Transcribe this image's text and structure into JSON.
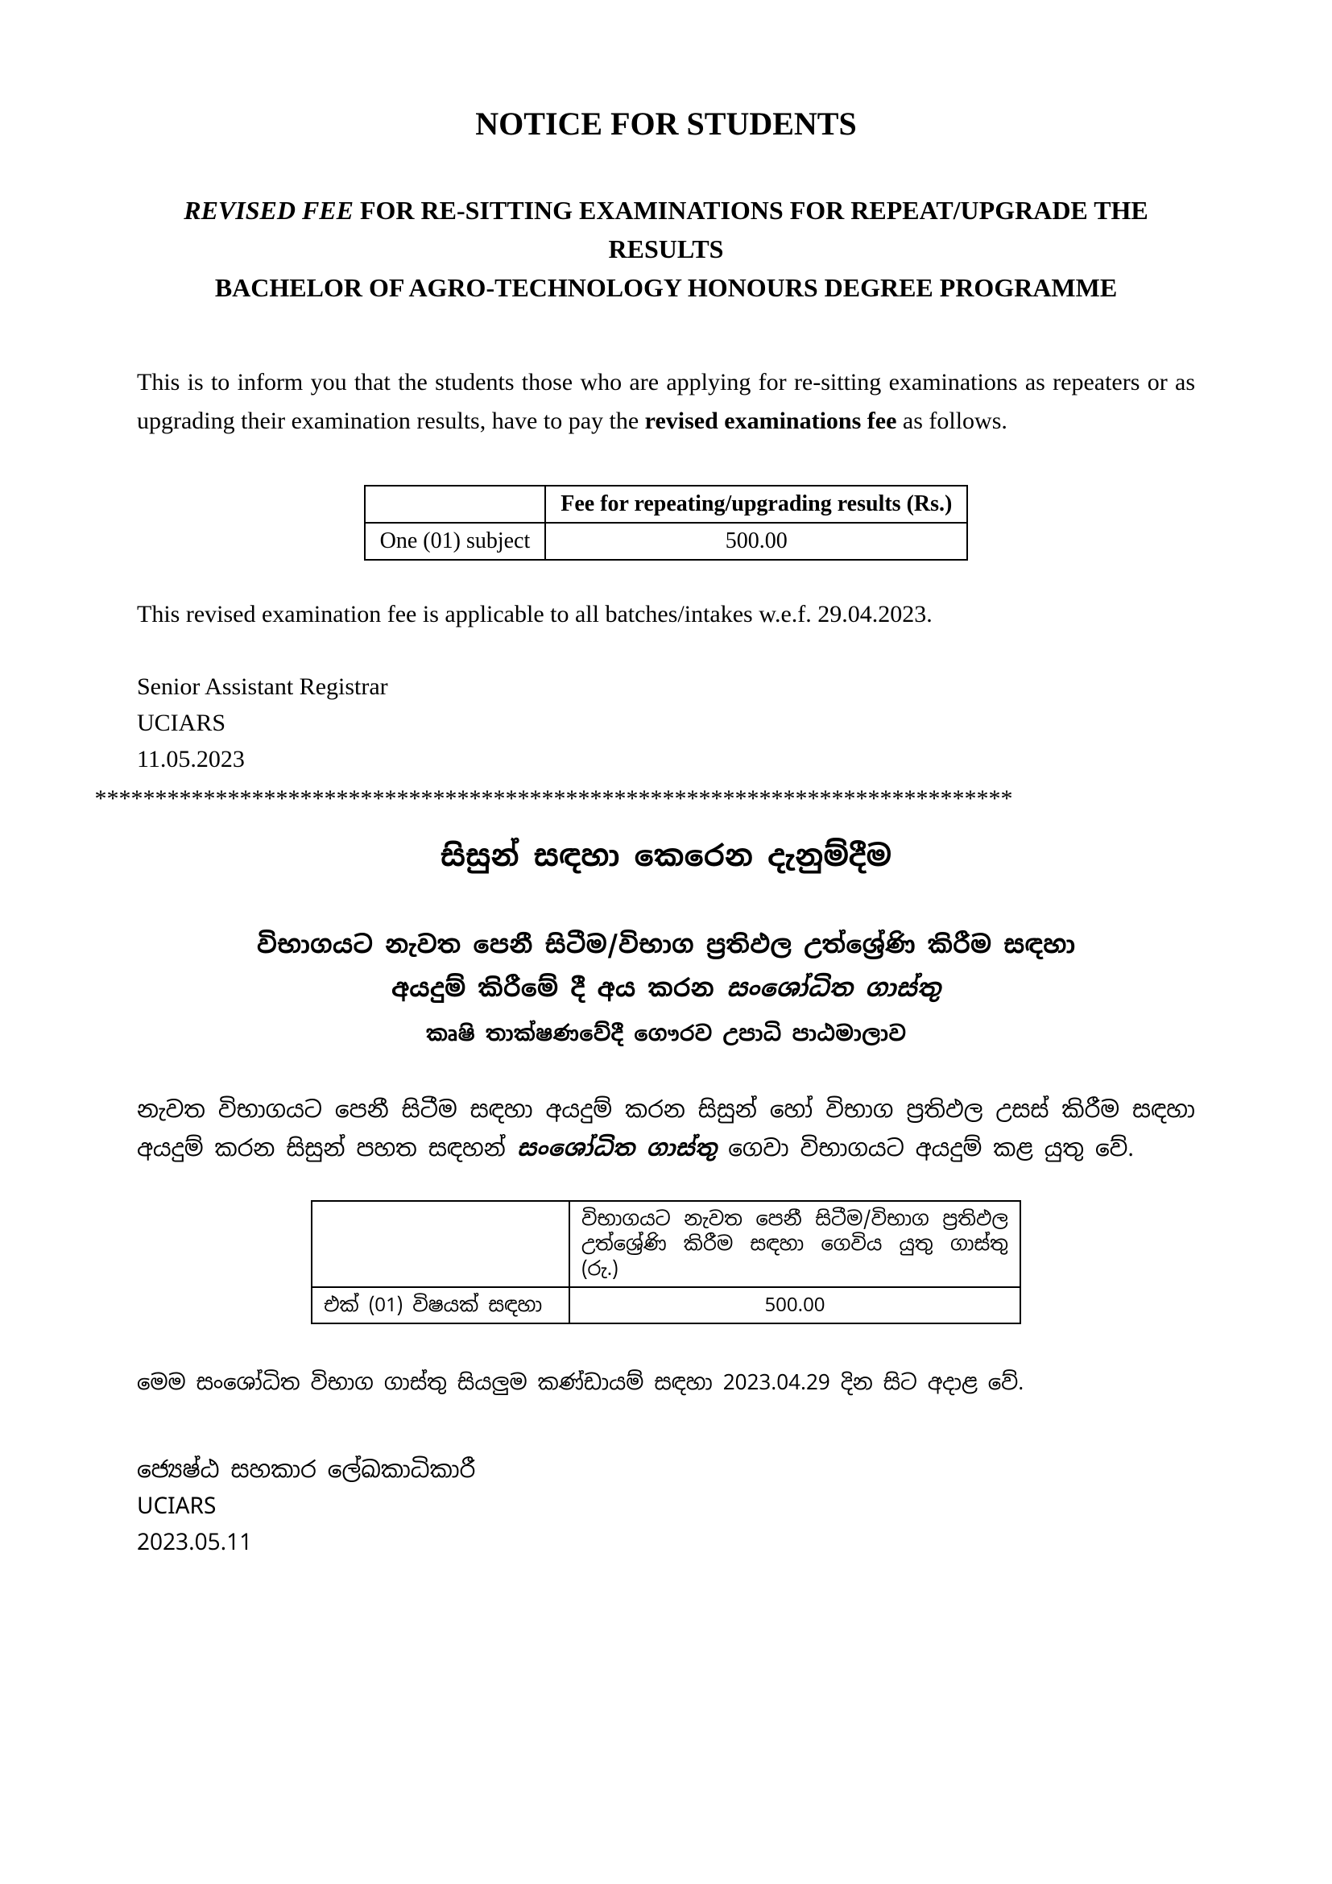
{
  "english": {
    "main_title": "NOTICE FOR STUDENTS",
    "subtitle_italic": "REVISED FEE",
    "subtitle_rest": " FOR RE-SITTING EXAMINATIONS FOR REPEAT/UPGRADE THE RESULTS",
    "subtitle_line2": "BACHELOR OF AGRO-TECHNOLOGY HONOURS DEGREE PROGRAMME",
    "body_part1": "This is to inform you that the students those who are applying for re-sitting examinations as repeaters or as upgrading their examination results, have to pay the ",
    "body_bold": "revised examinations fee",
    "body_part2": " as follows.",
    "table_header": "Fee for repeating/upgrading results (Rs.)",
    "table_row_label": "One (01) subject",
    "table_row_value": "500.00",
    "note": "This revised examination fee is applicable to all batches/intakes w.e.f. 29.04.2023.",
    "sig_line1": "Senior Assistant Registrar",
    "sig_line2": "UCIARS",
    "sig_line3": "11.05.2023"
  },
  "separator": "****************************************************************************",
  "sinhala": {
    "main_title": "සිසුන් සඳහා කෙරෙන දැනුම්දීම",
    "subtitle_line1": "විභාගයට නැවත පෙනී සිටීම/විභාග ප්‍රතිඵල උත්ශ්‍රේණි කිරීම සඳහා",
    "subtitle_line2a": "අයදුම් කිරීමේ දී අය කරන ",
    "subtitle_line2b_italic": "සංශෝධිත ගාස්තු",
    "programme": "කෘෂි තාක්ෂණවේදී  ගෞරව උපාධි  පාඨමාලාව",
    "body_part1": "නැවත විභාගයට පෙනී සිටීම සඳහා අයදුම් කරන සිසුන් හෝ විභාග ප්‍රතිඵල උසස් කිරීම සඳහා අයදුම් කරන සිසුන් පහත සඳහන් ",
    "body_bold_italic": "සංශෝධිත ගාස්තු",
    "body_part2": " ගෙවා විභාගයට අයදුම් කළ යුතු වේ.",
    "table_header": "විභාගයට නැවත පෙනී සිටීම/විභාග ප්‍රතිඵල උත්ශ්‍රේණි කිරීම සඳහා ගෙවිය යුතු ගාස්තු (රු.)",
    "table_row_label": "එක් (01) විෂයක් සඳහා",
    "table_row_value": "500.00",
    "note": "මෙම සංශෝධිත විභාග ගාස්තු සියලුම කණ්ඩායම් සඳහා 2023.04.29 දින සිට අදාළ වේ.",
    "sig_line1": "ජ්‍යෙෂ්ඨ සහකාර ලේඛකාධිකාරී",
    "sig_line2": "UCIARS",
    "sig_line3": "2023.05.11"
  }
}
